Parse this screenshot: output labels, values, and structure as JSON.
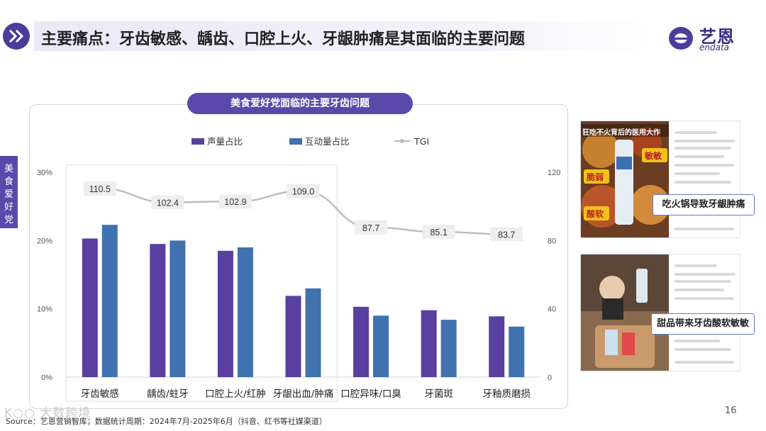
{
  "header": {
    "title": "主要痛点：牙齿敏感、龋齿、口腔上火、牙龈肿痛是其面临的主要问题",
    "brand_cn": "艺恩",
    "brand_en": "endata"
  },
  "side_tab": {
    "label": "美食爱好党"
  },
  "chart_data": {
    "type": "bar",
    "title": "美食爱好党面临的主要牙齿问题",
    "categories": [
      "牙齿敏感",
      "龋齿/蛀牙",
      "口腔上火/红肿",
      "牙龈出血/肿痛",
      "口腔异味/口臭",
      "牙菌斑",
      "牙釉质磨损"
    ],
    "series": [
      {
        "name": "声量占比",
        "type": "bar",
        "axis": "left",
        "color": "#5a3fa0",
        "values": [
          20.3,
          19.5,
          18.5,
          11.9,
          10.3,
          9.8,
          8.9
        ]
      },
      {
        "name": "互动量占比",
        "type": "bar",
        "axis": "left",
        "color": "#3f72ae",
        "values": [
          22.3,
          20.0,
          19.0,
          13.0,
          9.0,
          8.4,
          7.4
        ]
      },
      {
        "name": "TGI",
        "type": "line",
        "axis": "right",
        "color": "#bdbdbd",
        "values": [
          110.5,
          102.4,
          102.9,
          109.0,
          87.7,
          85.1,
          83.7
        ]
      }
    ],
    "tgi_labels": [
      "110.5",
      "102.4",
      "102.9",
      "109.0",
      "87.7",
      "85.1",
      "83.7"
    ],
    "y_left": {
      "min": 0,
      "max": 30,
      "ticks": [
        "0%",
        "10%",
        "20%",
        "30%"
      ]
    },
    "y_right": {
      "min": 0,
      "max": 120,
      "ticks": [
        "0",
        "40",
        "80",
        "120"
      ]
    },
    "legend_position": "top",
    "highlight_first_n": 4
  },
  "images": [
    {
      "callout": "吃火锅导致牙龈肿痛",
      "overlay": [
        "狂吃不火背后的医用大作",
        "脆弱",
        "敏敏",
        "酸软"
      ]
    },
    {
      "callout": "甜品带来牙齿酸软敏敏"
    }
  ],
  "footer": {
    "source": "Source：艺恩营销智库；数据统计周期：2024年7月-2025年6月（抖音、红书等社媒渠道）",
    "watermark": "K○○ 大数跨境",
    "page": "16"
  }
}
